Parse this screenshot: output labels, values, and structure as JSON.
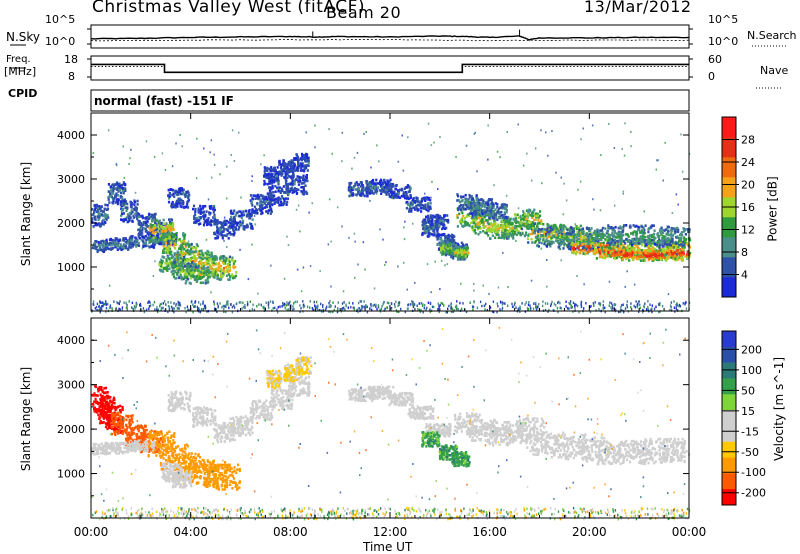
{
  "header": {
    "station": "Christmas Valley West (fitACF)",
    "beam": "Beam 20",
    "date": "13/Mar/2012"
  },
  "left_labels": {
    "nsky": "N.Sky",
    "nsky_ticks": [
      "10^5",
      "10^0"
    ],
    "freq_top": "Freq.",
    "freq_unit": "[MHz]",
    "freq_ticks": [
      "18",
      "8"
    ],
    "cpid": "CPID"
  },
  "right_labels": {
    "nsearch": "N.Search",
    "nsearch_ticks": [
      "10^5",
      "10^0"
    ],
    "nave": "Nave",
    "nave_ticks": [
      "60",
      "0"
    ]
  },
  "cpid_text": "normal (fast) -151 IF",
  "xaxis": {
    "label": "Time UT",
    "ticks": [
      "00:00",
      "04:00",
      "08:00",
      "12:00",
      "16:00",
      "20:00",
      "00:00"
    ]
  },
  "colors": {
    "power_scale": [
      "#1c2bd8",
      "#2f51a8",
      "#4a8f8a",
      "#2f9a3e",
      "#9fd52f",
      "#f5a21a",
      "#f06a10",
      "#e63015",
      "#ff1a1a"
    ],
    "velocity_scale": [
      "#ff0000",
      "#ff5a00",
      "#ff9a00",
      "#ffc800",
      "#cfcfcf",
      "#cfcfcf",
      "#7dd53a",
      "#33a14a",
      "#2b7a77",
      "#2a4fa8",
      "#2a3bd1"
    ]
  },
  "chart_data": [
    {
      "type": "line",
      "name": "nsky-nsearch",
      "xlim": [
        0,
        24
      ],
      "series": [
        {
          "name": "N.Sky",
          "x": [
            0,
            2,
            4,
            6,
            8,
            9,
            10,
            12,
            14,
            15,
            16,
            17.2,
            17.6,
            18,
            20,
            22,
            24
          ],
          "y": [
            2,
            2.1,
            2.3,
            2.4,
            2.5,
            2.4,
            2.5,
            2.4,
            2.6,
            2.5,
            2.3,
            2.6,
            1.8,
            2.2,
            2.2,
            2.3,
            2.3
          ]
        },
        {
          "name": "N.Search",
          "x": [
            0,
            4,
            8,
            12,
            16,
            20,
            24
          ],
          "y": [
            1.6,
            1.7,
            1.8,
            1.8,
            1.6,
            1.7,
            1.7
          ]
        }
      ]
    },
    {
      "type": "line",
      "name": "freq-nave",
      "xlim": [
        0,
        24
      ],
      "series": [
        {
          "name": "Freq.",
          "x": [
            0,
            2.95,
            2.95,
            14.9,
            14.9,
            24
          ],
          "y": [
            14.5,
            14.5,
            11.2,
            11.2,
            14.5,
            14.5
          ]
        },
        {
          "name": "Nave",
          "x": [
            0,
            2.95,
            2.95,
            14.9,
            14.9,
            24
          ],
          "y": [
            34,
            34,
            20,
            20,
            34,
            34
          ]
        }
      ]
    },
    {
      "type": "heatmap",
      "name": "power",
      "ylabel": "Slant Range [km]",
      "zlabel": "Power [dB]",
      "xlim": [
        0,
        24
      ],
      "ylim": [
        0,
        4500
      ],
      "yticks": [
        1000,
        2000,
        3000,
        4000
      ],
      "colorbar_ticks": [
        4,
        8,
        12,
        16,
        20,
        24,
        28
      ],
      "zlim": [
        0,
        32
      ],
      "regions": [
        {
          "x": [
            0.3,
            1.0,
            1.5,
            2.2,
            2.9
          ],
          "y": [
            2200,
            2700,
            2300,
            2000,
            1800
          ],
          "w": 0.35,
          "h": 250,
          "v": 7
        },
        {
          "x": [
            0.1,
            1.0,
            2.0,
            2.9
          ],
          "y": [
            1500,
            1550,
            1600,
            1650
          ],
          "w": 0.5,
          "h": 130,
          "v": 8
        },
        {
          "x": [
            2.8,
            3.3,
            3.8,
            4.3,
            4.8,
            5.3
          ],
          "y": [
            1850,
            1550,
            1300,
            1150,
            1050,
            1000
          ],
          "w": 0.5,
          "h": 260,
          "v": 20
        },
        {
          "x": [
            3.2,
            3.7,
            4.2
          ],
          "y": [
            1100,
            950,
            850
          ],
          "w": 0.5,
          "h": 200,
          "v": 16
        },
        {
          "x": [
            3.5,
            4.5,
            5.3,
            6.0,
            6.8,
            7.5,
            8.2
          ],
          "y": [
            2600,
            2200,
            1900,
            2100,
            2450,
            2650,
            2900
          ],
          "w": 0.45,
          "h": 220,
          "v": 6
        },
        {
          "x": [
            7.2,
            7.8,
            8.4
          ],
          "y": [
            3100,
            3250,
            3400
          ],
          "w": 0.3,
          "h": 200,
          "v": 5
        },
        {
          "x": [
            10.8,
            11.5,
            12.3,
            13.1,
            13.8
          ],
          "y": [
            2800,
            2850,
            2750,
            2450,
            2050
          ],
          "w": 0.5,
          "h": 160,
          "v": 6
        },
        {
          "x": [
            13.6,
            14.2,
            14.7
          ],
          "y": [
            1900,
            1600,
            1400
          ],
          "w": 0.35,
          "h": 180,
          "v": 7
        },
        {
          "x": [
            14.3,
            14.8
          ],
          "y": [
            1450,
            1350
          ],
          "w": 0.3,
          "h": 150,
          "v": 18
        },
        {
          "x": [
            15.2,
            15.8,
            16.4,
            17.0,
            17.5
          ],
          "y": [
            2150,
            2000,
            1900,
            1950,
            2100
          ],
          "w": 0.55,
          "h": 230,
          "v": 18
        },
        {
          "x": [
            15.1,
            15.6,
            16.2
          ],
          "y": [
            2500,
            2400,
            2300
          ],
          "w": 0.45,
          "h": 180,
          "v": 9
        },
        {
          "x": [
            18.2,
            19.0,
            19.8,
            20.6,
            21.4,
            22.2,
            23.0,
            23.7
          ],
          "y": [
            1800,
            1750,
            1650,
            1550,
            1450,
            1400,
            1450,
            1500
          ],
          "w": 0.75,
          "h": 220,
          "v": 20
        },
        {
          "x": [
            18.5,
            19.5,
            20.5,
            21.5,
            22.5,
            23.5
          ],
          "y": [
            1700,
            1650,
            1700,
            1750,
            1750,
            1700
          ],
          "w": 0.85,
          "h": 230,
          "v": 11
        },
        {
          "x": [
            20.0,
            21.0,
            22.0,
            23.0,
            23.8
          ],
          "y": [
            1450,
            1350,
            1300,
            1300,
            1350
          ],
          "w": 0.75,
          "h": 130,
          "v": 29
        }
      ],
      "ground_band": {
        "y_max": 250,
        "v": 6
      }
    },
    {
      "type": "heatmap",
      "name": "velocity",
      "ylabel": "Slant Range [km]",
      "zlabel": "Velocity [m s^-1]",
      "xlim": [
        0,
        24
      ],
      "ylim": [
        0,
        4500
      ],
      "yticks": [
        1000,
        2000,
        3000,
        4000
      ],
      "colorbar_ticks": [
        "200",
        "100",
        "50",
        "15",
        "-15",
        "-50",
        "-100",
        "-200"
      ],
      "regions": [
        {
          "x": [
            0.3,
            0.6,
            0.9
          ],
          "y": [
            2700,
            2450,
            2250
          ],
          "w": 0.35,
          "h": 300,
          "v": -250
        },
        {
          "x": [
            1.2,
            1.8,
            2.4
          ],
          "y": [
            2150,
            1900,
            1750
          ],
          "w": 0.45,
          "h": 250,
          "v": -120
        },
        {
          "x": [
            0.1,
            1.0,
            2.0
          ],
          "y": [
            1580,
            1600,
            1650
          ],
          "w": 0.5,
          "h": 120,
          "v": 0
        },
        {
          "x": [
            2.8,
            3.3,
            3.8,
            4.4,
            5.0,
            5.4
          ],
          "y": [
            1700,
            1400,
            1200,
            1050,
            1000,
            950
          ],
          "w": 0.55,
          "h": 280,
          "v": -80
        },
        {
          "x": [
            3.2,
            3.6
          ],
          "y": [
            1050,
            900
          ],
          "w": 0.4,
          "h": 200,
          "v": 0
        },
        {
          "x": [
            3.5,
            4.5,
            5.3,
            6.0,
            6.8,
            7.6,
            8.3
          ],
          "y": [
            2650,
            2300,
            1950,
            2100,
            2450,
            2700,
            3000
          ],
          "w": 0.45,
          "h": 220,
          "v": 0
        },
        {
          "x": [
            7.3,
            8.0,
            8.5
          ],
          "y": [
            3150,
            3300,
            3450
          ],
          "w": 0.3,
          "h": 200,
          "v": -30
        },
        {
          "x": [
            10.8,
            11.6,
            12.4,
            13.2,
            13.9
          ],
          "y": [
            2800,
            2850,
            2700,
            2400,
            2000
          ],
          "w": 0.5,
          "h": 140,
          "v": 0
        },
        {
          "x": [
            13.6,
            14.3,
            14.8
          ],
          "y": [
            1800,
            1500,
            1350
          ],
          "w": 0.35,
          "h": 160,
          "v": 40
        },
        {
          "x": [
            15.1,
            15.7,
            16.3,
            17.0,
            17.6
          ],
          "y": [
            2150,
            2000,
            1900,
            1950,
            2050
          ],
          "w": 0.55,
          "h": 240,
          "v": 0
        },
        {
          "x": [
            18.2,
            19.0,
            19.8,
            20.6,
            21.4,
            22.2,
            23.0,
            23.7
          ],
          "y": [
            1700,
            1650,
            1600,
            1500,
            1500,
            1500,
            1550,
            1550
          ],
          "w": 0.8,
          "h": 260,
          "v": 0
        }
      ],
      "ground_band": {
        "y_max": 250,
        "v": 20
      }
    }
  ]
}
